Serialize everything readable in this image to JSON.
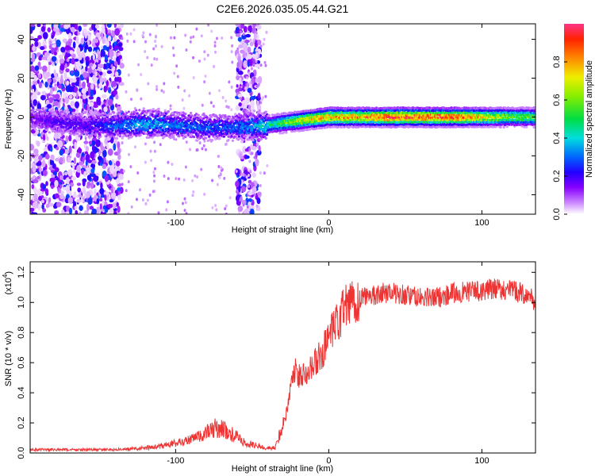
{
  "chart_data": [
    {
      "type": "heatmap",
      "title": "C2E6.2026.035.05.44.G21",
      "xlabel": "Height of straight line (km)",
      "ylabel": "Frequency (Hz)",
      "xlim": [
        -195,
        135
      ],
      "ylim": [
        -50,
        48
      ],
      "xticks": [
        -100,
        0,
        100
      ],
      "xtick_labels": [
        "-100",
        "0",
        "100"
      ],
      "yticks": [
        -40,
        -20,
        0,
        20,
        40
      ],
      "ytick_labels": [
        "-40",
        "-20",
        "0",
        "20",
        "40"
      ],
      "colorbar": {
        "label": "Normalized spectral amplitude",
        "range": [
          0,
          1
        ],
        "ticks": [
          0.0,
          0.2,
          0.4,
          0.6,
          0.8
        ],
        "tick_labels": [
          "0.0",
          "0.2",
          "0.4",
          "0.6",
          "0.8"
        ]
      },
      "ridge": {
        "x": [
          -195,
          -180,
          -160,
          -140,
          -120,
          -100,
          -80,
          -60,
          -40,
          -30,
          -20,
          -10,
          0,
          20,
          40,
          60,
          80,
          100,
          120,
          135
        ],
        "freq": [
          0,
          -2,
          -4,
          -4,
          -3,
          -4,
          -5,
          -5,
          -4,
          -3,
          -2,
          -1,
          0,
          0,
          0,
          0,
          0,
          0,
          0,
          0
        ],
        "amplitude": [
          0.15,
          0.2,
          0.2,
          0.3,
          0.4,
          0.35,
          0.3,
          0.3,
          0.45,
          0.6,
          0.7,
          0.8,
          0.85,
          0.85,
          0.95,
          0.95,
          0.95,
          0.8,
          0.6,
          0.6
        ]
      },
      "noise_regions": [
        [
          -195,
          -135
        ],
        [
          -60,
          -45
        ]
      ]
    },
    {
      "type": "line",
      "xlabel": "Height of straight line (km)",
      "ylabel": "SNR (10 * v/v)",
      "y_multiplier": "(x10",
      "y_multiplier_exp": "4",
      "xlim": [
        -195,
        135
      ],
      "ylim": [
        0,
        1.27
      ],
      "xticks": [
        -100,
        0,
        100
      ],
      "xtick_labels": [
        "-100",
        "0",
        "100"
      ],
      "yticks": [
        0.0,
        0.2,
        0.4,
        0.6,
        0.8,
        1.0,
        1.2
      ],
      "ytick_labels": [
        "0.0",
        "0.2",
        "0.4",
        "0.6",
        "0.8",
        "1.0",
        "1.2"
      ],
      "series": [
        {
          "name": "SNR",
          "color": "#ee3333",
          "x": [
            -195,
            -180,
            -160,
            -140,
            -120,
            -110,
            -100,
            -90,
            -80,
            -75,
            -70,
            -65,
            -60,
            -55,
            -50,
            -45,
            -40,
            -35,
            -30,
            -27,
            -25,
            -22,
            -20,
            -15,
            -10,
            -5,
            0,
            5,
            10,
            15,
            20,
            25,
            30,
            40,
            50,
            60,
            70,
            80,
            90,
            100,
            110,
            120,
            130,
            135
          ],
          "values": [
            0.02,
            0.02,
            0.02,
            0.02,
            0.03,
            0.04,
            0.06,
            0.08,
            0.12,
            0.15,
            0.15,
            0.12,
            0.1,
            0.06,
            0.05,
            0.04,
            0.03,
            0.03,
            0.18,
            0.3,
            0.45,
            0.55,
            0.5,
            0.55,
            0.58,
            0.65,
            0.75,
            0.85,
            0.95,
            1.0,
            1.02,
            1.05,
            1.05,
            1.07,
            1.05,
            1.03,
            1.03,
            1.06,
            1.07,
            1.08,
            1.09,
            1.08,
            1.05,
            1.0
          ]
        }
      ]
    }
  ]
}
